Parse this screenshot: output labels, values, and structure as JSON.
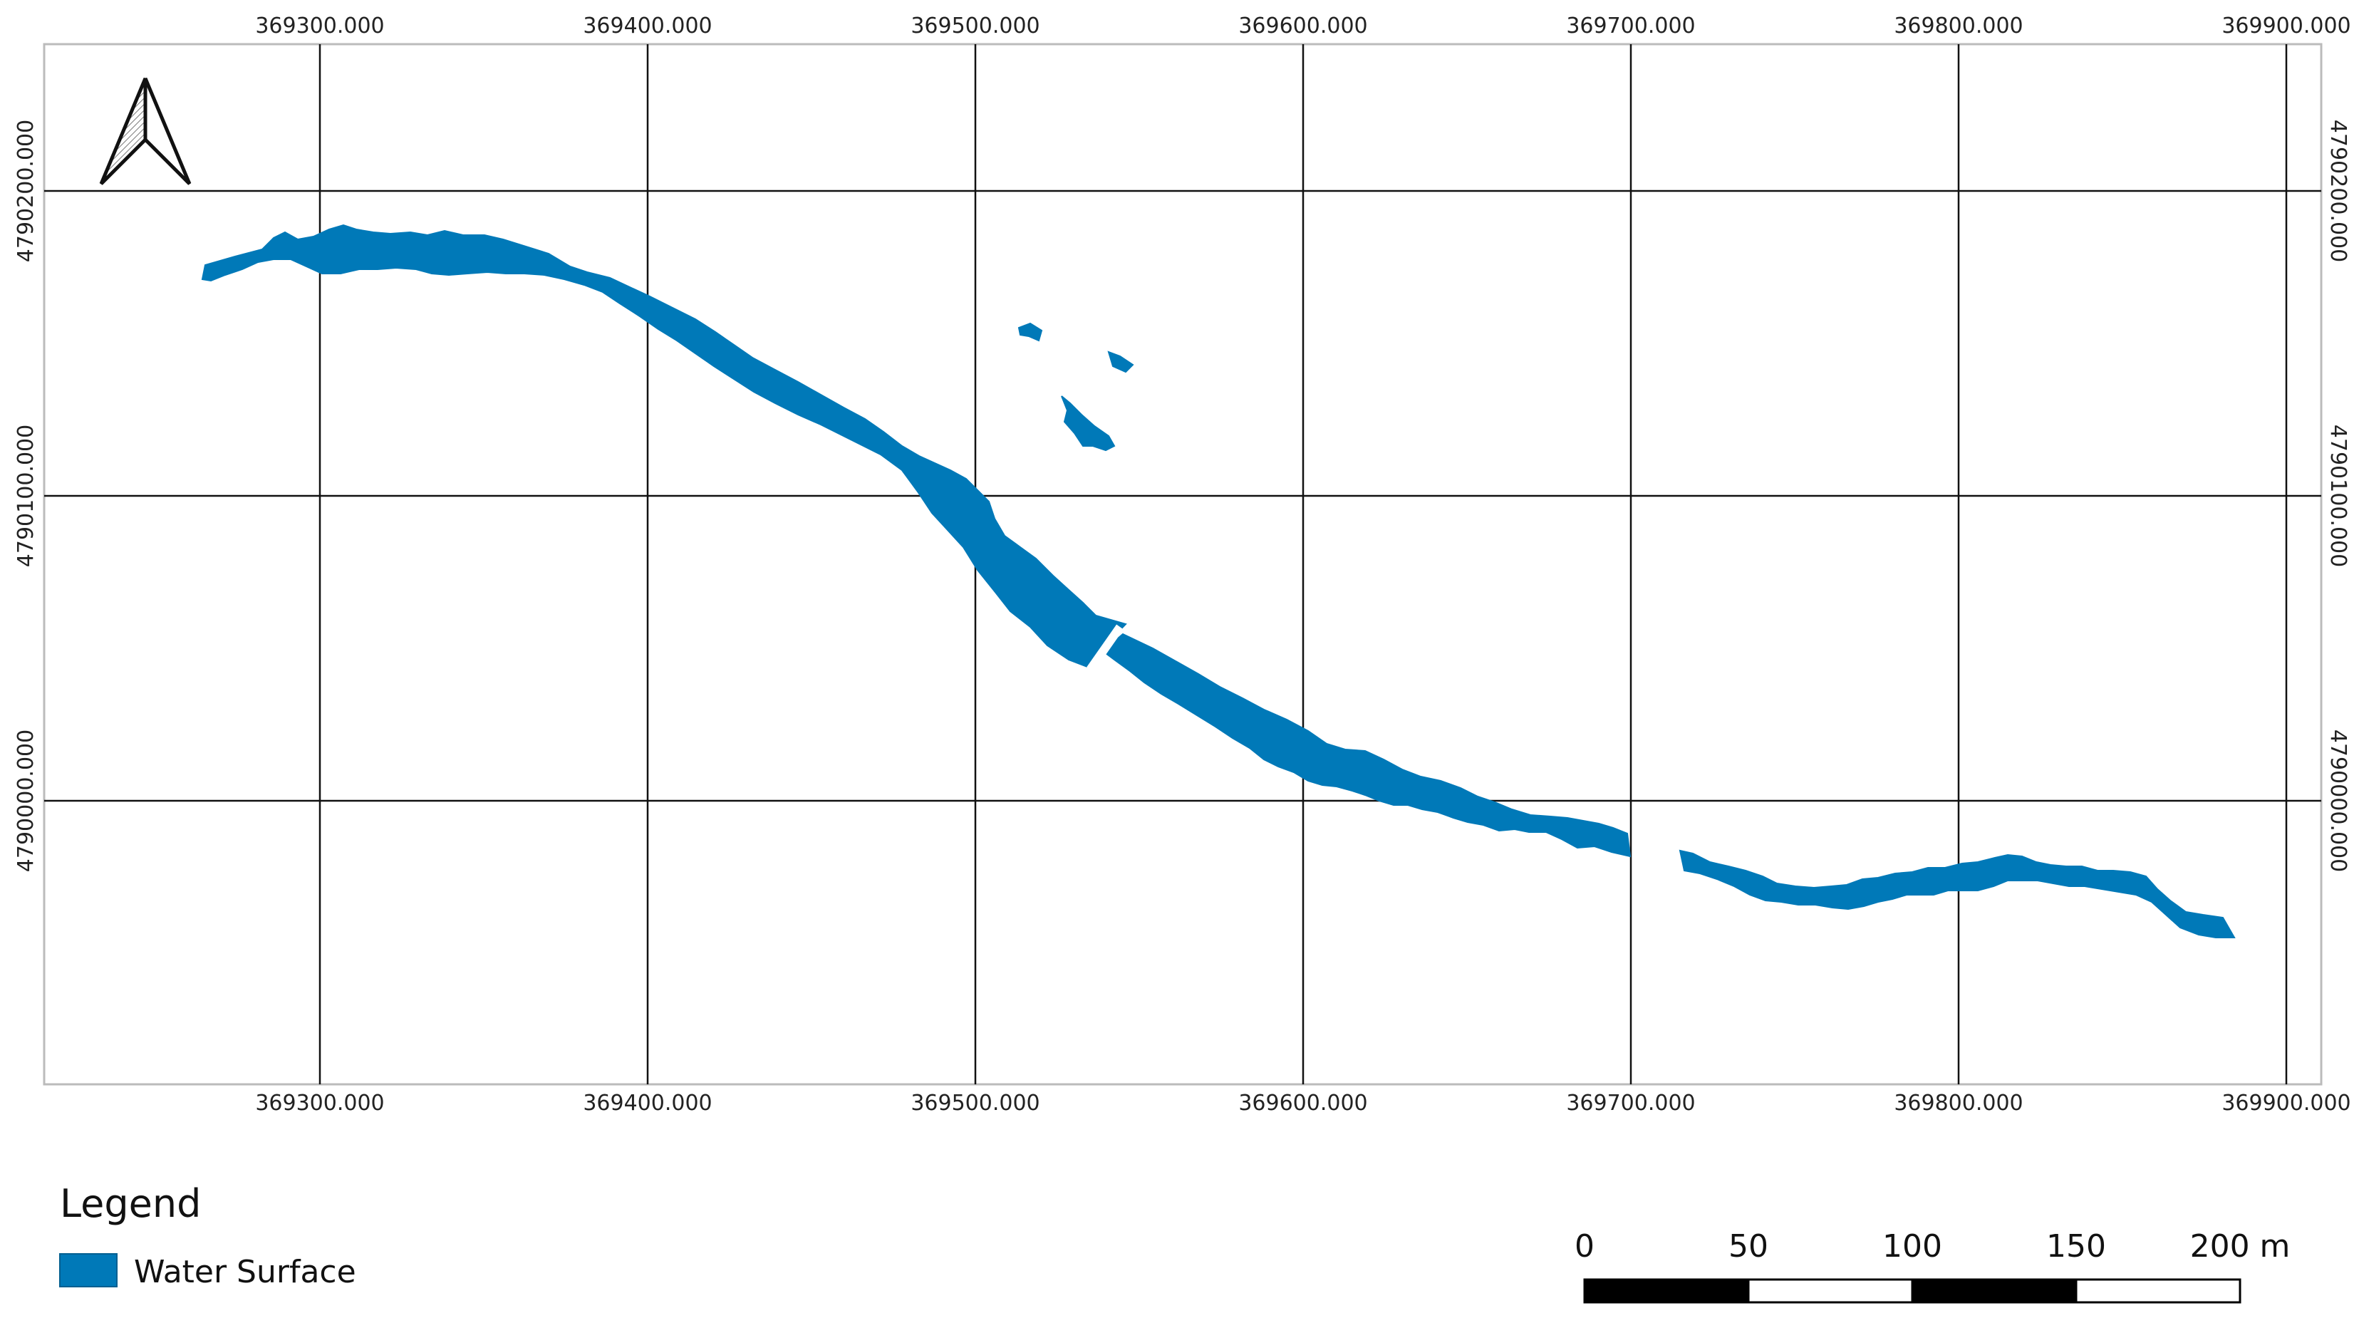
{
  "map": {
    "x_ticks": [
      "369300.000",
      "369400.000",
      "369500.000",
      "369600.000",
      "369700.000",
      "369800.000",
      "369900.000"
    ],
    "y_ticks": [
      "4790200.000",
      "4790100.000",
      "4790000.000"
    ]
  },
  "legend": {
    "title": "Legend",
    "items": [
      {
        "label": "Water Surface",
        "color": "#0079b8"
      }
    ]
  },
  "scale_bar": {
    "labels": [
      "0",
      "50",
      "100",
      "150",
      "200 m"
    ]
  },
  "north_arrow": {
    "icon": "north-arrow-icon"
  },
  "colors": {
    "water": "#0079b8",
    "grid": "#111111",
    "frame": "#bbbbbb"
  }
}
